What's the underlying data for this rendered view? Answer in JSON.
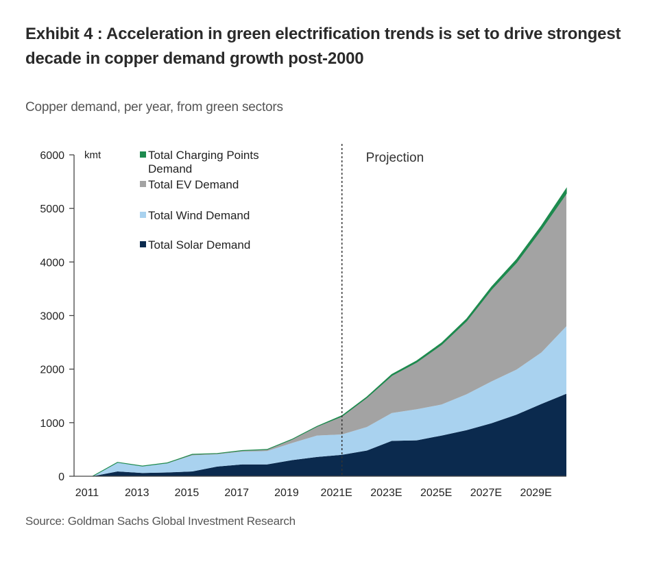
{
  "title": "Exhibit 4 : Acceleration in green electrification trends is set to drive strongest decade in copper demand growth post-2000",
  "subtitle": "Copper demand, per year, from green sectors",
  "source": "Source: Goldman Sachs Global Investment Research",
  "colors": {
    "solar": "#0b2a4e",
    "wind": "#a9d2ef",
    "ev": "#a3a3a3",
    "charging": "#1d8a4e",
    "projection_line": "#333333"
  },
  "chart_data": {
    "type": "area",
    "stacked": true,
    "unit_label": "kmt",
    "annotation": "Projection",
    "projection_start": 2021,
    "x": [
      2011,
      2012,
      2013,
      2014,
      2015,
      2016,
      2017,
      2018,
      2019,
      2020,
      2021,
      2022,
      2023,
      2024,
      2025,
      2026,
      2027,
      2028,
      2029,
      2030
    ],
    "x_tick_values": [
      2011,
      2013,
      2015,
      2017,
      2019,
      2021,
      2023,
      2025,
      2027,
      2029
    ],
    "x_tick_labels": [
      "2011",
      "2013",
      "2015",
      "2017",
      "2019",
      "2021E",
      "2023E",
      "2025E",
      "2027E",
      "2029E"
    ],
    "ylim": [
      0,
      6000
    ],
    "y_ticks": [
      0,
      1000,
      2000,
      3000,
      4000,
      5000,
      6000
    ],
    "legend_position": "top-left",
    "series": [
      {
        "name": "Total Solar Demand",
        "color_key": "solar",
        "values": [
          0,
          90,
          60,
          70,
          90,
          180,
          220,
          220,
          300,
          360,
          400,
          480,
          660,
          670,
          760,
          860,
          990,
          1150,
          1350,
          1540
        ]
      },
      {
        "name": "Total Wind Demand",
        "color_key": "wind",
        "values": [
          0,
          170,
          130,
          170,
          300,
          230,
          240,
          250,
          320,
          400,
          380,
          440,
          520,
          580,
          580,
          670,
          780,
          840,
          960,
          1260
        ]
      },
      {
        "name": "Total EV Demand",
        "color_key": "ev",
        "values": [
          0,
          0,
          0,
          10,
          20,
          15,
          20,
          30,
          70,
          170,
          340,
          550,
          700,
          880,
          1120,
          1370,
          1720,
          2000,
          2300,
          2480
        ]
      },
      {
        "name": "Total Charging Points Demand",
        "color_key": "charging",
        "values": [
          0,
          0,
          0,
          0,
          0,
          0,
          0,
          0,
          0,
          0,
          10,
          10,
          20,
          25,
          30,
          35,
          45,
          55,
          65,
          90
        ]
      }
    ]
  }
}
